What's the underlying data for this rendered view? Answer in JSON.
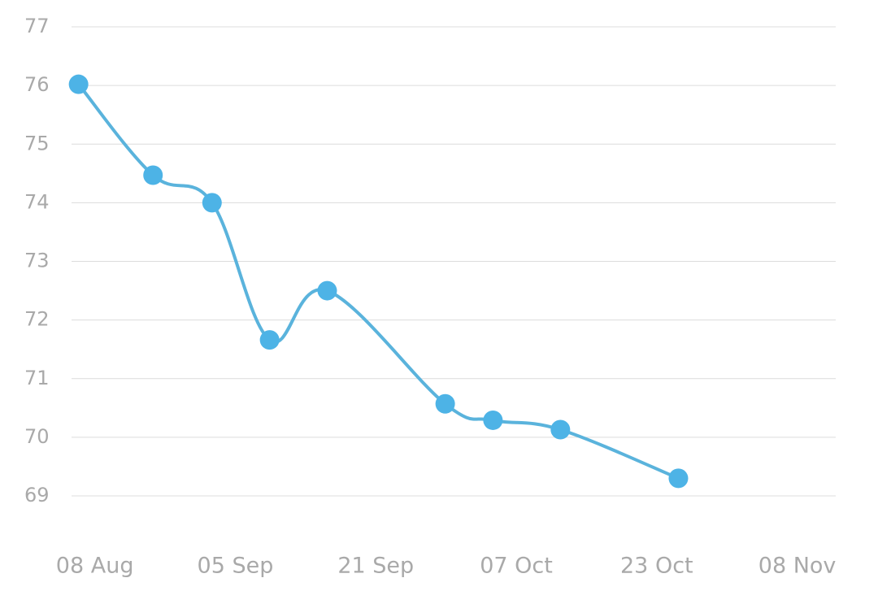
{
  "chart_data": {
    "type": "line",
    "x": [
      0,
      0.53,
      0.95,
      1.36,
      1.77,
      2.61,
      2.95,
      3.43,
      4.27
    ],
    "values": [
      76.02,
      74.47,
      74.0,
      71.66,
      72.5,
      70.57,
      70.29,
      70.13,
      69.3
    ],
    "color": "#4db3e6",
    "xlim": [
      -0.05,
      5.39
    ],
    "xticks": [
      {
        "value": 0,
        "label": "08 Aug"
      },
      {
        "value": 1,
        "label": "05 Sep"
      },
      {
        "value": 2,
        "label": "21 Sep"
      },
      {
        "value": 3,
        "label": "07 Oct"
      },
      {
        "value": 4,
        "label": "23 Oct"
      },
      {
        "value": 5,
        "label": "08 Nov"
      }
    ],
    "ylim": [
      69,
      77
    ],
    "yticks": [
      69,
      70,
      71,
      72,
      73,
      74,
      75,
      76,
      77
    ],
    "grid": true
  }
}
